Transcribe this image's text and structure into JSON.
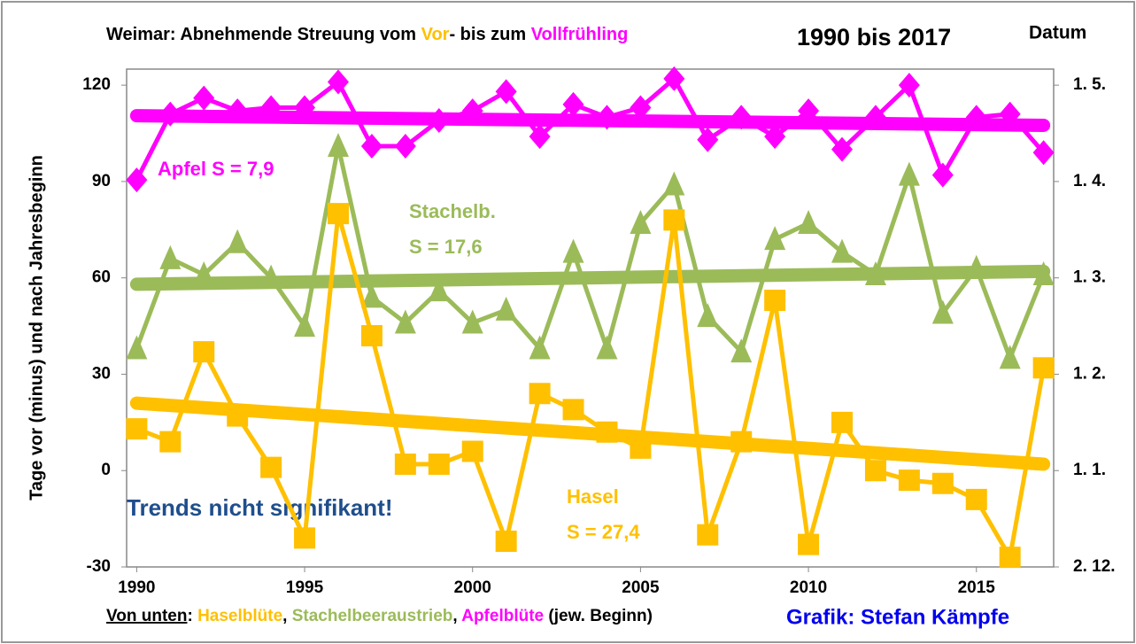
{
  "chart_data": {
    "type": "line",
    "title_parts": [
      "Weimar: Abnehmende Streuung vom ",
      "Vor",
      "- bis zum ",
      "Vollfrühling"
    ],
    "subtitle": "1990 bis 2017",
    "y2_title": "Datum",
    "ylabel": "Tage vor (minus) und nach Jahresbeginn",
    "x": [
      1990,
      1991,
      1992,
      1993,
      1994,
      1995,
      1996,
      1997,
      1998,
      1999,
      2000,
      2001,
      2002,
      2003,
      2004,
      2005,
      2006,
      2007,
      2008,
      2009,
      2010,
      2011,
      2012,
      2013,
      2014,
      2015,
      2016,
      2017
    ],
    "xlim": [
      1989.7,
      2017.3
    ],
    "xticks": [
      1990,
      1995,
      2000,
      2005,
      2010,
      2015
    ],
    "ylim": [
      -30,
      125
    ],
    "yticks": [
      -30,
      0,
      30,
      60,
      90,
      120
    ],
    "y2lim": [
      -30,
      125
    ],
    "y2ticks": [
      {
        "value": -30,
        "label": "2. 12."
      },
      {
        "value": 0,
        "label": "1. 1."
      },
      {
        "value": 30,
        "label": "1. 2."
      },
      {
        "value": 60,
        "label": "1. 3."
      },
      {
        "value": 90,
        "label": "1. 4."
      },
      {
        "value": 120,
        "label": "1. 5."
      }
    ],
    "series": [
      {
        "name": "Apfelblüte",
        "color": "#ff00ff",
        "marker": "diamond",
        "values": [
          90.5,
          111,
          116,
          112,
          113,
          113,
          121,
          101,
          101,
          109,
          112,
          118,
          104,
          114,
          110,
          113,
          122,
          103,
          110,
          104,
          112,
          100,
          110,
          120,
          92,
          110,
          111,
          99
        ],
        "trend": [
          110.5,
          107.5
        ]
      },
      {
        "name": "Stachelbeeraustrieb",
        "color": "#9bbb59",
        "marker": "triangle",
        "values": [
          38,
          66,
          61,
          71,
          60,
          45,
          101,
          54,
          46,
          56,
          46,
          50,
          38,
          68,
          38,
          77,
          89,
          48,
          37,
          72,
          77,
          68,
          61,
          92,
          49,
          63,
          35,
          61
        ],
        "trend": [
          58,
          62
        ]
      },
      {
        "name": "Haselblüte",
        "color": "#ffc000",
        "marker": "square",
        "values": [
          13,
          9,
          37,
          17,
          1,
          -21,
          80,
          42,
          2,
          2,
          6,
          -22,
          24,
          19,
          12,
          7,
          78,
          -20,
          9,
          53,
          -23,
          15,
          0,
          -3,
          -4,
          -9,
          -27,
          32
        ],
        "trend": [
          21,
          2
        ]
      }
    ],
    "annotations": [
      "Apfel S = 7,9",
      "Stachelb.",
      "S = 17,6",
      "Hasel",
      "S = 27,4",
      "Trends nicht signifikant!"
    ],
    "footer_parts": [
      "Von unten",
      ": ",
      ", ",
      ", ",
      " (jew. Beginn)"
    ],
    "credit": "Grafik: Stefan Kämpfe"
  }
}
